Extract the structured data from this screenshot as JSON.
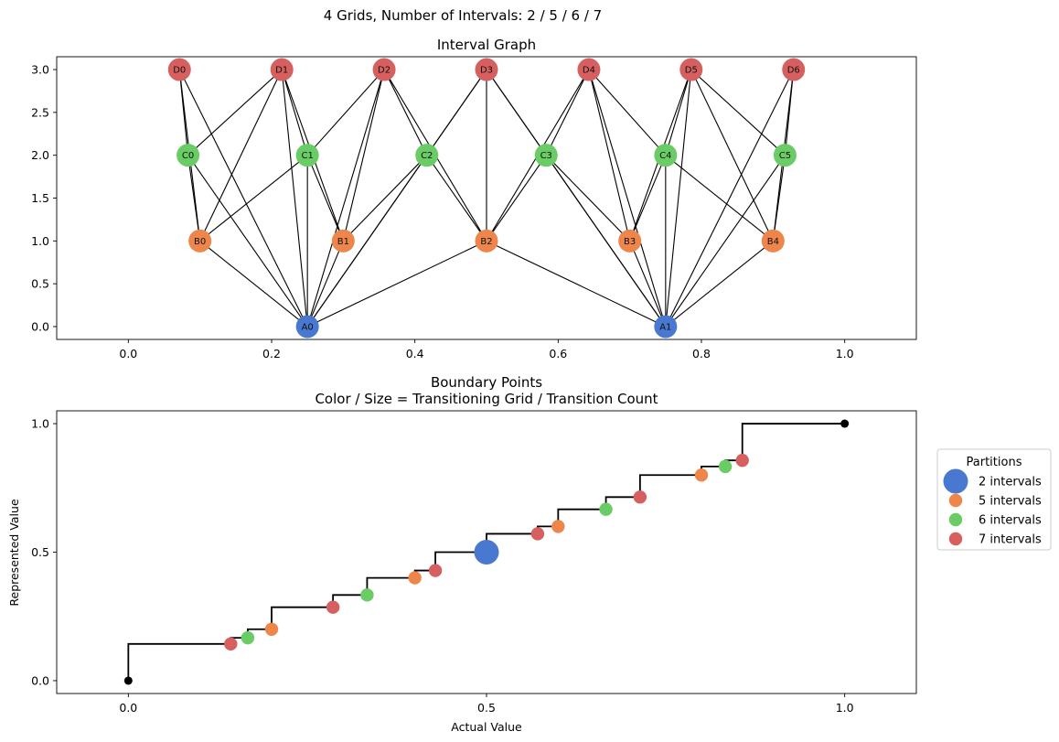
{
  "figure": {
    "suptitle": "4 Grids, Number of Intervals: 2 / 5 / 6 / 7"
  },
  "colors": {
    "A": "#4878d0",
    "B": "#ee854a",
    "C": "#6acc64",
    "D": "#d65f5f",
    "edge": "#000000",
    "step": "#000000"
  },
  "chart_data": [
    {
      "type": "scatter",
      "subtype": "network-graph",
      "title": "Interval Graph",
      "xlim": [
        -0.1,
        1.1
      ],
      "ylim": [
        -0.15,
        3.15
      ],
      "xticks": [
        "0.0",
        "0.2",
        "0.4",
        "0.6",
        "0.8",
        "1.0"
      ],
      "xtick_values": [
        0.0,
        0.2,
        0.4,
        0.6,
        0.8,
        1.0
      ],
      "yticks": [
        "0.0",
        "0.5",
        "1.0",
        "1.5",
        "2.0",
        "2.5",
        "3.0"
      ],
      "ytick_values": [
        0.0,
        0.5,
        1.0,
        1.5,
        2.0,
        2.5,
        3.0
      ],
      "nodes": [
        {
          "id": "A0",
          "group": "A",
          "x": 0.25,
          "y": 0
        },
        {
          "id": "A1",
          "group": "A",
          "x": 0.75,
          "y": 0
        },
        {
          "id": "B0",
          "group": "B",
          "x": 0.1,
          "y": 1
        },
        {
          "id": "B1",
          "group": "B",
          "x": 0.3,
          "y": 1
        },
        {
          "id": "B2",
          "group": "B",
          "x": 0.5,
          "y": 1
        },
        {
          "id": "B3",
          "group": "B",
          "x": 0.7,
          "y": 1
        },
        {
          "id": "B4",
          "group": "B",
          "x": 0.9,
          "y": 1
        },
        {
          "id": "C0",
          "group": "C",
          "x": 0.0833,
          "y": 2
        },
        {
          "id": "C1",
          "group": "C",
          "x": 0.25,
          "y": 2
        },
        {
          "id": "C2",
          "group": "C",
          "x": 0.4167,
          "y": 2
        },
        {
          "id": "C3",
          "group": "C",
          "x": 0.5833,
          "y": 2
        },
        {
          "id": "C4",
          "group": "C",
          "x": 0.75,
          "y": 2
        },
        {
          "id": "C5",
          "group": "C",
          "x": 0.9167,
          "y": 2
        },
        {
          "id": "D0",
          "group": "D",
          "x": 0.0714,
          "y": 3
        },
        {
          "id": "D1",
          "group": "D",
          "x": 0.2143,
          "y": 3
        },
        {
          "id": "D2",
          "group": "D",
          "x": 0.3571,
          "y": 3
        },
        {
          "id": "D3",
          "group": "D",
          "x": 0.5,
          "y": 3
        },
        {
          "id": "D4",
          "group": "D",
          "x": 0.6429,
          "y": 3
        },
        {
          "id": "D5",
          "group": "D",
          "x": 0.7857,
          "y": 3
        },
        {
          "id": "D6",
          "group": "D",
          "x": 0.9286,
          "y": 3
        }
      ],
      "edges": [
        [
          "A0",
          "B0"
        ],
        [
          "A0",
          "B1"
        ],
        [
          "A0",
          "B2"
        ],
        [
          "A1",
          "B2"
        ],
        [
          "A1",
          "B3"
        ],
        [
          "A1",
          "B4"
        ],
        [
          "A0",
          "C0"
        ],
        [
          "A0",
          "C1"
        ],
        [
          "A0",
          "C2"
        ],
        [
          "A1",
          "C3"
        ],
        [
          "A1",
          "C4"
        ],
        [
          "A1",
          "C5"
        ],
        [
          "A0",
          "D0"
        ],
        [
          "A0",
          "D1"
        ],
        [
          "A0",
          "D2"
        ],
        [
          "A0",
          "D3"
        ],
        [
          "A1",
          "D3"
        ],
        [
          "A1",
          "D4"
        ],
        [
          "A1",
          "D5"
        ],
        [
          "A1",
          "D6"
        ],
        [
          "B0",
          "C0"
        ],
        [
          "B0",
          "C1"
        ],
        [
          "B1",
          "C1"
        ],
        [
          "B1",
          "C2"
        ],
        [
          "B2",
          "C2"
        ],
        [
          "B2",
          "C3"
        ],
        [
          "B3",
          "C3"
        ],
        [
          "B3",
          "C4"
        ],
        [
          "B4",
          "C4"
        ],
        [
          "B4",
          "C5"
        ],
        [
          "B0",
          "D0"
        ],
        [
          "B0",
          "D1"
        ],
        [
          "B1",
          "D1"
        ],
        [
          "B1",
          "D2"
        ],
        [
          "B2",
          "D2"
        ],
        [
          "B2",
          "D3"
        ],
        [
          "B2",
          "D4"
        ],
        [
          "B3",
          "D4"
        ],
        [
          "B3",
          "D5"
        ],
        [
          "B4",
          "D5"
        ],
        [
          "B4",
          "D6"
        ],
        [
          "C0",
          "D0"
        ],
        [
          "C0",
          "D1"
        ],
        [
          "C1",
          "D1"
        ],
        [
          "C1",
          "D2"
        ],
        [
          "C2",
          "D2"
        ],
        [
          "C2",
          "D3"
        ],
        [
          "C3",
          "D3"
        ],
        [
          "C3",
          "D4"
        ],
        [
          "C4",
          "D4"
        ],
        [
          "C4",
          "D5"
        ],
        [
          "C5",
          "D5"
        ],
        [
          "C5",
          "D6"
        ]
      ]
    },
    {
      "type": "scatter",
      "subtype": "step-with-markers",
      "title": "Boundary Points",
      "subtitle": "Color / Size = Transitioning Grid / Transition Count",
      "xlabel": "Actual Value",
      "ylabel": "Represented Value",
      "xlim": [
        -0.1,
        1.1
      ],
      "ylim": [
        -0.05,
        1.05
      ],
      "xticks": [
        "0.0",
        "0.5",
        "1.0"
      ],
      "xtick_values": [
        0.0,
        0.5,
        1.0
      ],
      "yticks": [
        "0.0",
        "0.5",
        "1.0"
      ],
      "ytick_values": [
        0.0,
        0.5,
        1.0
      ],
      "step": {
        "x": [
          0,
          0.1429,
          0.1667,
          0.2,
          0.2857,
          0.3333,
          0.4,
          0.4286,
          0.5,
          0.5714,
          0.6,
          0.6667,
          0.7143,
          0.8,
          0.8333,
          0.8571,
          1.0
        ],
        "y": [
          0,
          0.1429,
          0.1667,
          0.2,
          0.2857,
          0.3333,
          0.4,
          0.4286,
          0.5,
          0.5714,
          0.6,
          0.6667,
          0.7143,
          0.8,
          0.8333,
          0.8571,
          1.0
        ]
      },
      "endpoints": [
        [
          0,
          0
        ],
        [
          1,
          1
        ]
      ],
      "legend": {
        "title": "Partitions",
        "placement": "right",
        "entries": [
          {
            "label": "2 intervals",
            "group": "A",
            "size": 2
          },
          {
            "label": "5 intervals",
            "group": "B",
            "size": 1
          },
          {
            "label": "6 intervals",
            "group": "C",
            "size": 1
          },
          {
            "label": "7 intervals",
            "group": "D",
            "size": 1
          }
        ]
      },
      "points": [
        {
          "x": 0.1429,
          "y": 0.1429,
          "group": "D",
          "count": 1
        },
        {
          "x": 0.1667,
          "y": 0.1667,
          "group": "C",
          "count": 1
        },
        {
          "x": 0.2,
          "y": 0.2,
          "group": "B",
          "count": 1
        },
        {
          "x": 0.2857,
          "y": 0.2857,
          "group": "D",
          "count": 1
        },
        {
          "x": 0.3333,
          "y": 0.3333,
          "group": "C",
          "count": 1
        },
        {
          "x": 0.4,
          "y": 0.4,
          "group": "B",
          "count": 1
        },
        {
          "x": 0.4286,
          "y": 0.4286,
          "group": "D",
          "count": 1
        },
        {
          "x": 0.5,
          "y": 0.5,
          "group": "A",
          "count": 2
        },
        {
          "x": 0.5714,
          "y": 0.5714,
          "group": "D",
          "count": 1
        },
        {
          "x": 0.6,
          "y": 0.6,
          "group": "B",
          "count": 1
        },
        {
          "x": 0.6667,
          "y": 0.6667,
          "group": "C",
          "count": 1
        },
        {
          "x": 0.7143,
          "y": 0.7143,
          "group": "D",
          "count": 1
        },
        {
          "x": 0.8,
          "y": 0.8,
          "group": "B",
          "count": 1
        },
        {
          "x": 0.8333,
          "y": 0.8333,
          "group": "C",
          "count": 1
        },
        {
          "x": 0.8571,
          "y": 0.8571,
          "group": "D",
          "count": 1
        }
      ]
    }
  ]
}
